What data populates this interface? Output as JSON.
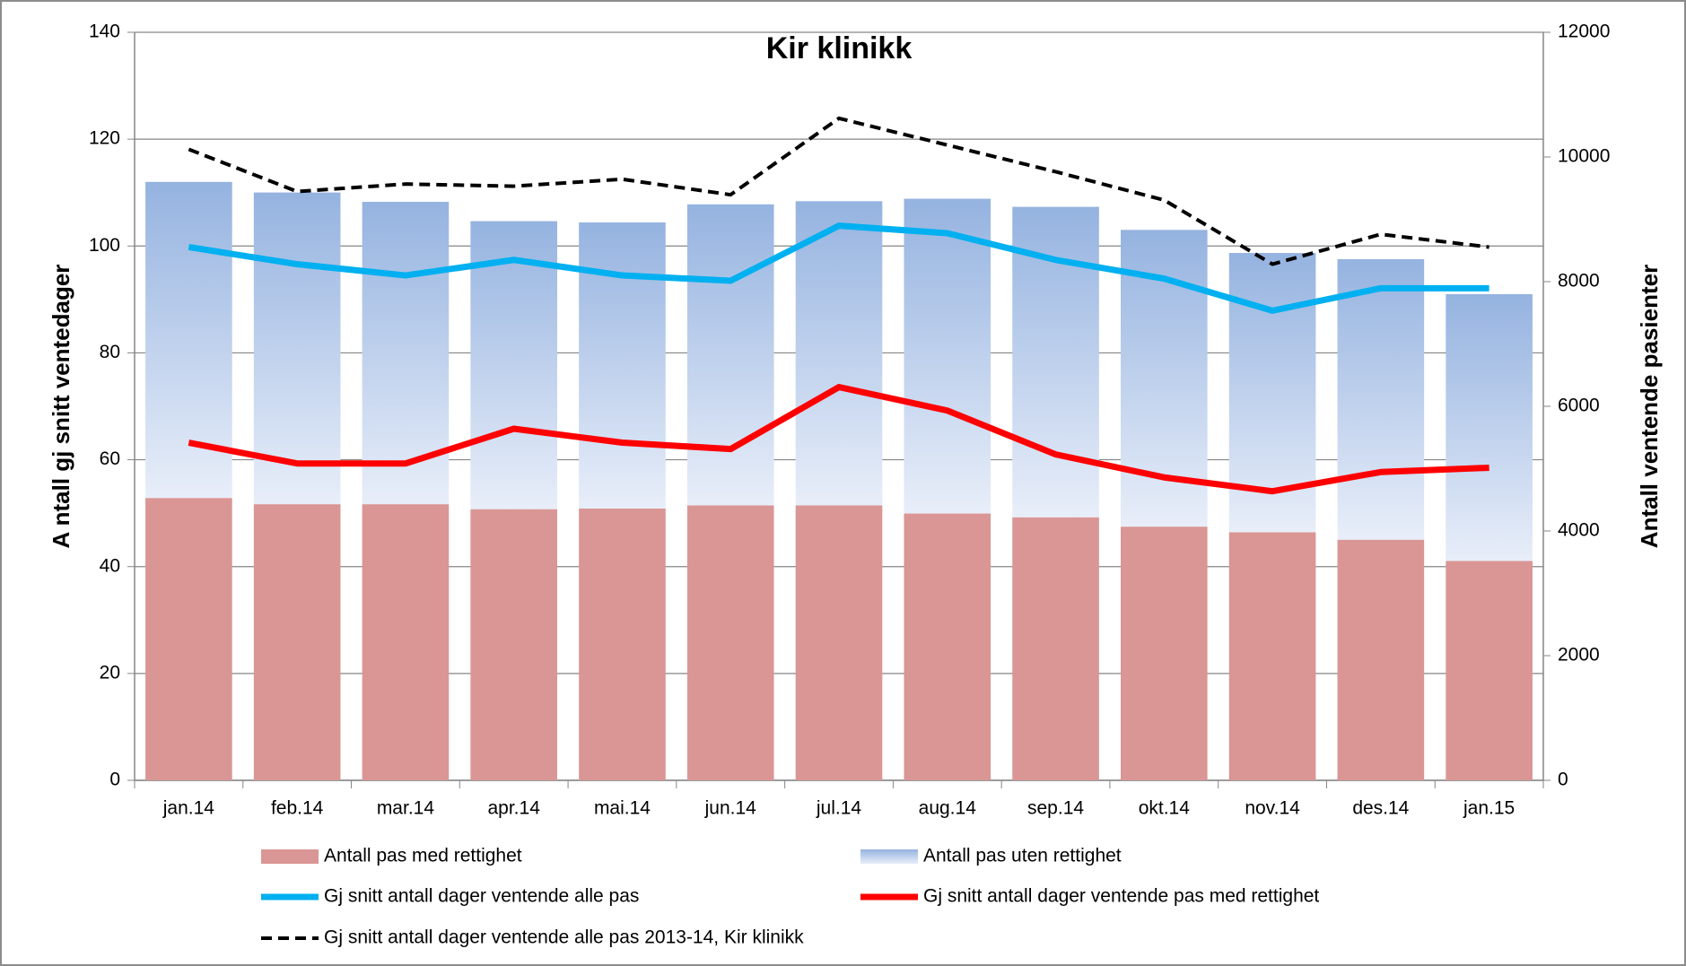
{
  "chart_data": {
    "type": "bar",
    "title": "Kir klinikk",
    "y_label": "A ntall gj snitt ventedager",
    "y2_label": "Antall ventende  pasienter",
    "categories": [
      "jan.14",
      "feb.14",
      "mar.14",
      "apr.14",
      "mai.14",
      "jun.14",
      "jul.14",
      "aug.14",
      "sep.14",
      "okt.14",
      "nov.14",
      "des.14",
      "jan.15"
    ],
    "ylim": [
      0,
      140
    ],
    "yticks": [
      0,
      20,
      40,
      60,
      80,
      100,
      120,
      140
    ],
    "y2lim": [
      0,
      12000
    ],
    "y2ticks": [
      0,
      2000,
      4000,
      6000,
      8000,
      10000,
      12000
    ],
    "grid": true,
    "stacked": true,
    "series": [
      {
        "name": "Antall pas med rettighet",
        "type": "bar",
        "axis": "y2",
        "color": "#d99694",
        "values": [
          4530,
          4430,
          4430,
          4350,
          4360,
          4410,
          4410,
          4280,
          4220,
          4070,
          3980,
          3860,
          3520
        ]
      },
      {
        "name": "Antall pas uten rettighet",
        "type": "bar",
        "axis": "y2",
        "color": "#95b3e0",
        "values": [
          5070,
          5000,
          4850,
          4620,
          4590,
          4830,
          4880,
          5050,
          4980,
          4760,
          4480,
          4500,
          4280
        ]
      },
      {
        "name": "Gj snitt antall dager ventende alle pas",
        "type": "line",
        "color": "#00b0f0",
        "values": [
          99.8,
          96.6,
          94.5,
          97.4,
          94.5,
          93.5,
          103.8,
          102.4,
          97.4,
          93.9,
          87.9,
          92.1,
          92.1
        ]
      },
      {
        "name": "Gj snitt antall dager ventende pas med rettighet",
        "type": "line",
        "color": "#ff0000",
        "values": [
          63.2,
          59.3,
          59.3,
          65.8,
          63.2,
          62.0,
          73.6,
          69.2,
          61.0,
          56.7,
          54.1,
          57.7,
          58.5
        ]
      },
      {
        "name": "Gj snitt antall dager ventende alle pas 2013-14, Kir klinikk",
        "type": "line",
        "color": "#000000",
        "dashed": true,
        "values": [
          118.1,
          110.2,
          111.6,
          111.2,
          112.5,
          109.6,
          123.9,
          118.9,
          113.9,
          108.6,
          96.6,
          102.2,
          99.8
        ]
      }
    ]
  }
}
